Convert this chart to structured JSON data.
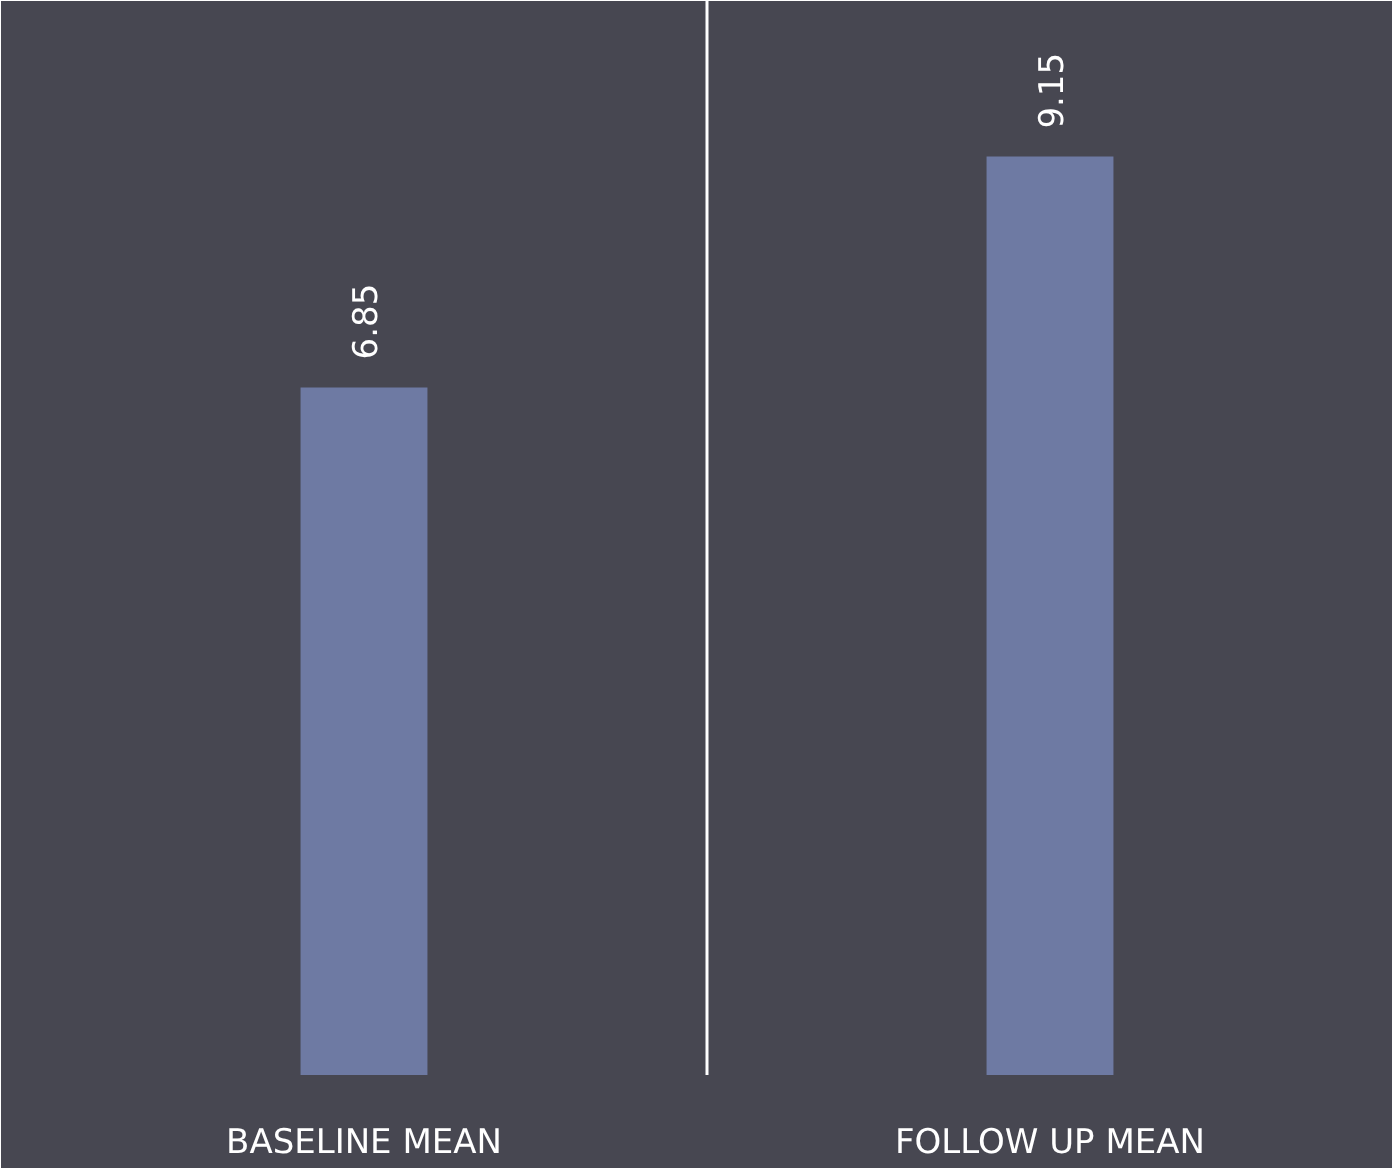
{
  "chart_data": {
    "type": "bar",
    "categories": [
      "BASELINE MEAN",
      "FOLLOW UP MEAN"
    ],
    "values": [
      6.85,
      9.15
    ],
    "color": "#6e7aa3",
    "ylim": [
      0,
      10.7
    ],
    "data_labels": true,
    "grid": "x",
    "tick_labels": "x"
  }
}
